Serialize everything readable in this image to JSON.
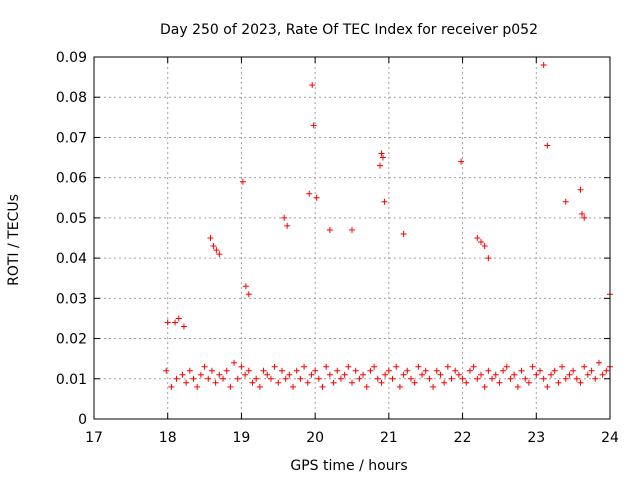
{
  "chart_data": {
    "type": "scatter",
    "title": "Day 250 of 2023, Rate Of TEC Index for receiver p052",
    "xlabel": "GPS time / hours",
    "ylabel": "ROTI / TECUs",
    "xlim": [
      17,
      24
    ],
    "ylim": [
      0,
      0.09
    ],
    "xticks": [
      "17",
      "18",
      "19",
      "20",
      "21",
      "22",
      "23",
      "24"
    ],
    "yticks": [
      "0",
      "0.01",
      "0.02",
      "0.03",
      "0.04",
      "0.05",
      "0.06",
      "0.07",
      "0.08",
      "0.09"
    ],
    "grid": true,
    "marker": "+",
    "color": "#ff0000",
    "series": [
      {
        "name": "ROTI",
        "x": [
          17.98,
          18.05,
          18.12,
          18.2,
          18.25,
          18.3,
          18.35,
          18.4,
          18.45,
          18.5,
          18.55,
          18.6,
          18.65,
          18.7,
          18.75,
          18.8,
          18.85,
          18.9,
          18.95,
          19.0,
          19.05,
          19.1,
          19.15,
          19.2,
          19.25,
          19.3,
          19.35,
          19.4,
          19.45,
          19.5,
          19.55,
          19.6,
          19.65,
          19.7,
          19.75,
          19.8,
          19.85,
          19.9,
          19.95,
          20.0,
          20.05,
          20.1,
          20.15,
          20.2,
          20.25,
          20.3,
          20.35,
          20.4,
          20.45,
          20.5,
          20.55,
          20.6,
          20.65,
          20.7,
          20.75,
          20.8,
          20.85,
          20.9,
          20.95,
          21.0,
          21.05,
          21.1,
          21.15,
          21.2,
          21.25,
          21.3,
          21.35,
          21.4,
          21.45,
          21.5,
          21.55,
          21.6,
          21.65,
          21.7,
          21.75,
          21.8,
          21.85,
          21.9,
          21.95,
          22.0,
          22.05,
          22.1,
          22.15,
          22.2,
          22.25,
          22.3,
          22.35,
          22.4,
          22.45,
          22.5,
          22.55,
          22.6,
          22.65,
          22.7,
          22.75,
          22.8,
          22.85,
          22.9,
          22.95,
          23.0,
          23.05,
          23.1,
          23.15,
          23.2,
          23.25,
          23.3,
          23.35,
          23.4,
          23.45,
          23.5,
          23.55,
          23.6,
          23.65,
          23.7,
          23.75,
          23.8,
          23.85,
          23.9,
          23.95,
          24.0,
          18.0,
          18.1,
          18.15,
          18.22,
          18.58,
          18.62,
          18.66,
          18.7,
          19.02,
          19.06,
          19.1,
          19.58,
          19.62,
          19.92,
          19.96,
          19.98,
          20.02,
          20.2,
          20.5,
          20.88,
          20.9,
          20.92,
          20.94,
          21.2,
          21.98,
          22.2,
          22.25,
          22.3,
          22.35,
          23.1,
          23.15,
          23.4,
          23.6,
          23.62,
          23.65,
          24.0
        ],
        "y": [
          0.012,
          0.008,
          0.01,
          0.011,
          0.009,
          0.012,
          0.01,
          0.008,
          0.011,
          0.013,
          0.01,
          0.012,
          0.009,
          0.011,
          0.01,
          0.012,
          0.008,
          0.014,
          0.01,
          0.013,
          0.011,
          0.012,
          0.009,
          0.01,
          0.008,
          0.012,
          0.011,
          0.01,
          0.013,
          0.009,
          0.012,
          0.01,
          0.011,
          0.008,
          0.012,
          0.01,
          0.013,
          0.009,
          0.011,
          0.012,
          0.01,
          0.008,
          0.013,
          0.011,
          0.009,
          0.012,
          0.01,
          0.011,
          0.013,
          0.009,
          0.012,
          0.01,
          0.011,
          0.008,
          0.012,
          0.013,
          0.01,
          0.009,
          0.011,
          0.012,
          0.01,
          0.013,
          0.008,
          0.011,
          0.012,
          0.01,
          0.009,
          0.013,
          0.011,
          0.012,
          0.01,
          0.008,
          0.012,
          0.011,
          0.009,
          0.013,
          0.01,
          0.012,
          0.011,
          0.01,
          0.009,
          0.012,
          0.013,
          0.01,
          0.011,
          0.008,
          0.012,
          0.01,
          0.011,
          0.009,
          0.012,
          0.013,
          0.01,
          0.011,
          0.008,
          0.012,
          0.01,
          0.009,
          0.013,
          0.011,
          0.012,
          0.01,
          0.008,
          0.011,
          0.012,
          0.009,
          0.013,
          0.01,
          0.011,
          0.012,
          0.01,
          0.009,
          0.013,
          0.011,
          0.012,
          0.01,
          0.014,
          0.011,
          0.012,
          0.013,
          0.024,
          0.024,
          0.025,
          0.023,
          0.045,
          0.043,
          0.042,
          0.041,
          0.059,
          0.033,
          0.031,
          0.05,
          0.048,
          0.056,
          0.083,
          0.073,
          0.055,
          0.047,
          0.047,
          0.063,
          0.066,
          0.065,
          0.054,
          0.046,
          0.064,
          0.045,
          0.044,
          0.043,
          0.04,
          0.088,
          0.068,
          0.054,
          0.057,
          0.051,
          0.05,
          0.031
        ]
      }
    ]
  }
}
